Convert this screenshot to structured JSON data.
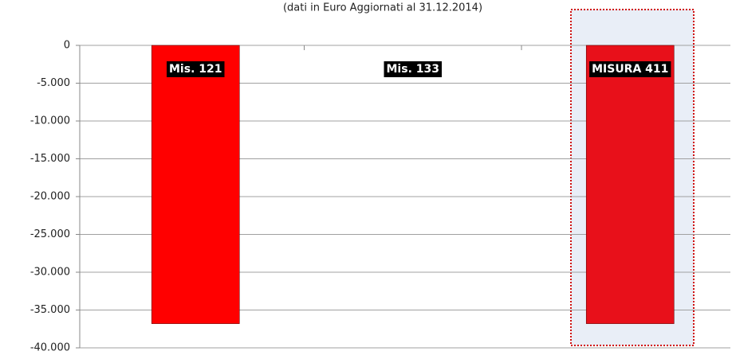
{
  "chart_data": {
    "type": "bar",
    "subtitle": "(dati in Euro Aggiornati al 31.12.2014)",
    "categories": [
      "Mis. 121",
      "Mis. 133",
      "MISURA 411"
    ],
    "values": [
      -36800,
      0,
      -36800
    ],
    "colors": [
      "#ff0000",
      "#ff0000",
      "#e8101a"
    ],
    "ylim": [
      -40000,
      0
    ],
    "yticks": [
      0,
      {
        "value": -5000,
        "label": "-5.000"
      },
      {
        "value": -10000,
        "label": "-10.000"
      },
      {
        "value": -15000,
        "label": "-15.000"
      },
      {
        "value": -20000,
        "label": "-20.000"
      },
      {
        "value": -25000,
        "label": "-25.000"
      },
      {
        "value": -30000,
        "label": "-30.000"
      },
      {
        "value": -35000,
        "label": "-35.000"
      },
      {
        "value": -40000,
        "label": "-40.000"
      }
    ],
    "grid": true
  }
}
